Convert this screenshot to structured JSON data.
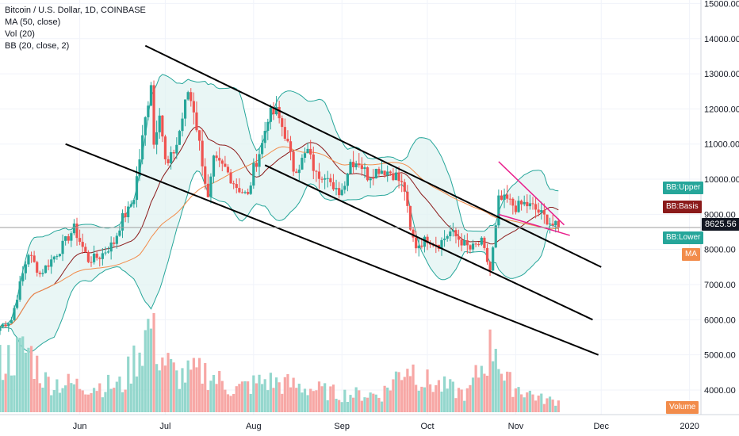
{
  "legend": {
    "symbol": "Bitcoin / U.S. Dollar, 1D, COINBASE",
    "ma": "MA (50, close)",
    "vol": "Vol (20)",
    "bb": "BB (20, close, 2)"
  },
  "tags": {
    "bb_upper": "BB:Upper",
    "bb_basis": "BB:Basis",
    "bb_lower": "BB:Lower",
    "ma": "MA",
    "price": "8625.56",
    "volume": "Volume"
  },
  "colors": {
    "up": "#26a69a",
    "down": "#ef5350",
    "bb_band": "#26a69a",
    "bb_fill": "#e0f2f1",
    "bb_basis": "#8b1a1a",
    "ma": "#f28c4b",
    "volume_up": "#94d7cd",
    "volume_down": "#f7a7a5",
    "channel": "#000000",
    "wedge": "#e91e8c",
    "price_line": "#9e9e9e"
  },
  "chart_data": {
    "type": "candlestick",
    "title": "Bitcoin / U.S. Dollar, 1D, COINBASE",
    "y_ticks": [
      "15000.00",
      "14000.00",
      "13000.00",
      "12000.00",
      "11000.00",
      "10000.00",
      "9000.00",
      "8000.00",
      "7000.00",
      "6000.00",
      "5000.00",
      "4000.00"
    ],
    "ylim": [
      3300,
      15100
    ],
    "x_ticks": [
      "Jun",
      "Jul",
      "Aug",
      "Sep",
      "Oct",
      "Nov",
      "Dec",
      "2020"
    ],
    "x_tick_dates": [
      "2019-06-01",
      "2019-07-01",
      "2019-08-01",
      "2019-09-01",
      "2019-10-01",
      "2019-11-01",
      "2019-12-01",
      "2020-01-01"
    ],
    "xlim": [
      "2019-05-04",
      "2020-01-05"
    ],
    "last_price": 8625.56,
    "price_keypoints": [
      [
        "2019-05-04",
        5800
      ],
      [
        "2019-05-08",
        6000
      ],
      [
        "2019-05-11",
        7000
      ],
      [
        "2019-05-14",
        7900
      ],
      [
        "2019-05-18",
        7300
      ],
      [
        "2019-05-25",
        8000
      ],
      [
        "2019-05-30",
        8600
      ],
      [
        "2019-06-04",
        7700
      ],
      [
        "2019-06-08",
        7800
      ],
      [
        "2019-06-13",
        8200
      ],
      [
        "2019-06-16",
        8900
      ],
      [
        "2019-06-18",
        9100
      ],
      [
        "2019-06-20",
        9500
      ],
      [
        "2019-06-22",
        10600
      ],
      [
        "2019-06-26",
        12800
      ],
      [
        "2019-06-27",
        11000
      ],
      [
        "2019-06-29",
        12000
      ],
      [
        "2019-07-01",
        10500
      ],
      [
        "2019-07-02",
        10400
      ],
      [
        "2019-07-05",
        11000
      ],
      [
        "2019-07-09",
        12500
      ],
      [
        "2019-07-11",
        12000
      ],
      [
        "2019-07-14",
        10500
      ],
      [
        "2019-07-16",
        9400
      ],
      [
        "2019-07-18",
        10500
      ],
      [
        "2019-07-22",
        10300
      ],
      [
        "2019-07-26",
        9800
      ],
      [
        "2019-07-30",
        9500
      ],
      [
        "2019-08-01",
        10300
      ],
      [
        "2019-08-04",
        11000
      ],
      [
        "2019-08-06",
        11800
      ],
      [
        "2019-08-09",
        11900
      ],
      [
        "2019-08-12",
        11300
      ],
      [
        "2019-08-15",
        10300
      ],
      [
        "2019-08-17",
        10400
      ],
      [
        "2019-08-20",
        10800
      ],
      [
        "2019-08-23",
        10100
      ],
      [
        "2019-08-27",
        10200
      ],
      [
        "2019-08-29",
        9600
      ],
      [
        "2019-09-01",
        9700
      ],
      [
        "2019-09-04",
        10500
      ],
      [
        "2019-09-07",
        10500
      ],
      [
        "2019-09-10",
        10100
      ],
      [
        "2019-09-14",
        10300
      ],
      [
        "2019-09-18",
        10200
      ],
      [
        "2019-09-20",
        10100
      ],
      [
        "2019-09-23",
        9700
      ],
      [
        "2019-09-25",
        8500
      ],
      [
        "2019-09-27",
        8100
      ],
      [
        "2019-10-01",
        8300
      ],
      [
        "2019-10-05",
        8150
      ],
      [
        "2019-10-09",
        8500
      ],
      [
        "2019-10-12",
        8300
      ],
      [
        "2019-10-16",
        8000
      ],
      [
        "2019-10-20",
        8200
      ],
      [
        "2019-10-23",
        7400
      ],
      [
        "2019-10-25",
        8600
      ],
      [
        "2019-10-26",
        9400
      ],
      [
        "2019-10-29",
        9400
      ],
      [
        "2019-11-01",
        9200
      ],
      [
        "2019-11-04",
        9300
      ],
      [
        "2019-11-07",
        9200
      ],
      [
        "2019-11-10",
        9000
      ],
      [
        "2019-11-14",
        8700
      ],
      [
        "2019-11-16",
        8625.56
      ]
    ],
    "volume_keypoints": [
      [
        "2019-05-04",
        0.55
      ],
      [
        "2019-05-14",
        0.7
      ],
      [
        "2019-05-20",
        0.35
      ],
      [
        "2019-06-01",
        0.3
      ],
      [
        "2019-06-16",
        0.3
      ],
      [
        "2019-06-26",
        1.0
      ],
      [
        "2019-06-29",
        0.65
      ],
      [
        "2019-07-05",
        0.4
      ],
      [
        "2019-07-15",
        0.45
      ],
      [
        "2019-07-25",
        0.25
      ],
      [
        "2019-08-05",
        0.35
      ],
      [
        "2019-08-15",
        0.3
      ],
      [
        "2019-09-01",
        0.2
      ],
      [
        "2019-09-15",
        0.2
      ],
      [
        "2019-09-24",
        0.55
      ],
      [
        "2019-09-30",
        0.35
      ],
      [
        "2019-10-15",
        0.2
      ],
      [
        "2019-10-25",
        0.82
      ],
      [
        "2019-10-28",
        0.35
      ],
      [
        "2019-11-10",
        0.15
      ],
      [
        "2019-11-16",
        0.12
      ]
    ],
    "trendlines": [
      {
        "name": "channel-top",
        "color": "#000000",
        "points": [
          [
            "2019-06-24",
            13800
          ],
          [
            "2019-12-01",
            7500
          ]
        ]
      },
      {
        "name": "channel-mid",
        "color": "#000000",
        "points": [
          [
            "2019-08-05",
            10400
          ],
          [
            "2019-11-28",
            6000
          ]
        ]
      },
      {
        "name": "channel-bottom",
        "color": "#000000",
        "points": [
          [
            "2019-05-27",
            11000
          ],
          [
            "2019-11-30",
            5000
          ]
        ]
      },
      {
        "name": "wedge-upper",
        "color": "#e91e8c",
        "points": [
          [
            "2019-10-26",
            10500
          ],
          [
            "2019-11-18",
            8700
          ]
        ]
      },
      {
        "name": "wedge-lower",
        "color": "#e91e8c",
        "points": [
          [
            "2019-10-26",
            9000
          ],
          [
            "2019-11-20",
            8400
          ]
        ]
      }
    ],
    "grid": true
  }
}
